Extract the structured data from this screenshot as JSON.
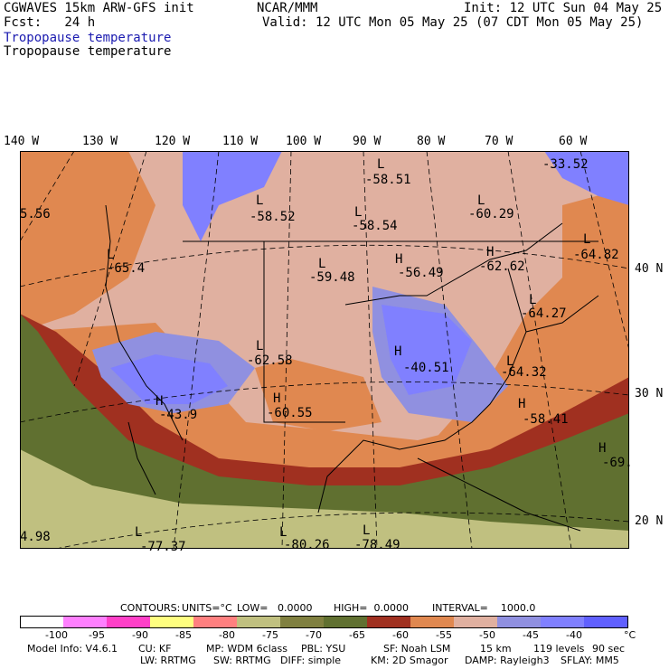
{
  "header": {
    "model_title": "CGWAVES 15km ARW-GFS init",
    "forecast": "Fcst:   24 h",
    "org": "NCAR/MMM",
    "init": "Init: 12 UTC Sun 04 May 25",
    "valid": "Valid: 12 UTC Mon 05 May 25 (07 CDT Mon 05 May 25)",
    "field_title_1": "Tropopause temperature",
    "field_title_2": "Tropopause temperature"
  },
  "longitude_labels": [
    "140 W",
    "130 W",
    "120 W",
    "110 W",
    "100 W",
    "90 W",
    "80 W",
    "70 W",
    "60 W"
  ],
  "latitude_labels": [
    "40 N",
    "30 N",
    "20 N"
  ],
  "map_labels": [
    {
      "text": "L",
      "value": "-58.51"
    },
    {
      "text": "-33.52",
      "value": "-33.52"
    },
    {
      "text": "L",
      "value": "-58.52"
    },
    {
      "text": "L",
      "value": "-58.54"
    },
    {
      "text": "L",
      "value": "-60.29"
    },
    {
      "text": "5.56",
      "value": "5.56"
    },
    {
      "text": "L",
      "value": "-65.4"
    },
    {
      "text": "L",
      "value": "-59.48"
    },
    {
      "text": "H",
      "value": "-56.49"
    },
    {
      "text": "H",
      "value": "-62.62"
    },
    {
      "text": "L",
      "value": "-64.82"
    },
    {
      "text": "L",
      "value": "-64.27"
    },
    {
      "text": "L",
      "value": "-62.58"
    },
    {
      "text": "H",
      "value": "-40.51"
    },
    {
      "text": "L",
      "value": "-64.32"
    },
    {
      "text": "H",
      "value": "-43.9"
    },
    {
      "text": "H",
      "value": "-60.55"
    },
    {
      "text": "H",
      "value": "-58.41"
    },
    {
      "text": "H",
      "value": "-69."
    },
    {
      "text": "4.98",
      "value": "4.98"
    },
    {
      "text": "L",
      "value": "-77.37"
    },
    {
      "text": "L",
      "value": "-80.26"
    },
    {
      "text": "L",
      "value": "-78.49"
    }
  ],
  "contour_info": {
    "contours": "CONTOURS:",
    "units": "UNITS=°C",
    "low": "LOW=   0.0000",
    "high": "HIGH=  0.0000",
    "interval": "INTERVAL=    1000.0"
  },
  "colorbar": {
    "colors": [
      "#ffffff",
      "#ff80ff",
      "#ff40c8",
      "#ffff80",
      "#ff8080",
      "#c0c080",
      "#808040",
      "#607030",
      "#a03020",
      "#e08850",
      "#e0b0a0",
      "#9090e0",
      "#8080ff",
      "#6060ff"
    ],
    "labels": [
      "-100",
      "-95",
      "-90",
      "-85",
      "-80",
      "-75",
      "-70",
      "-65",
      "-60",
      "-55",
      "-50",
      "-45",
      "-40",
      "°C"
    ]
  },
  "model_info": {
    "line1": [
      "Model Info: V4.6.1",
      "CU: KF",
      "MP: WDM 6class",
      "PBL: YSU",
      "SF: Noah LSM",
      "15 km",
      "119 levels",
      "90 sec"
    ],
    "line2": [
      "LW: RRTMG",
      "SW: RRTMG",
      "DIFF: simple",
      "KM: 2D Smagor",
      "DAMP: Rayleigh3",
      "SFLAY: MM5"
    ]
  }
}
